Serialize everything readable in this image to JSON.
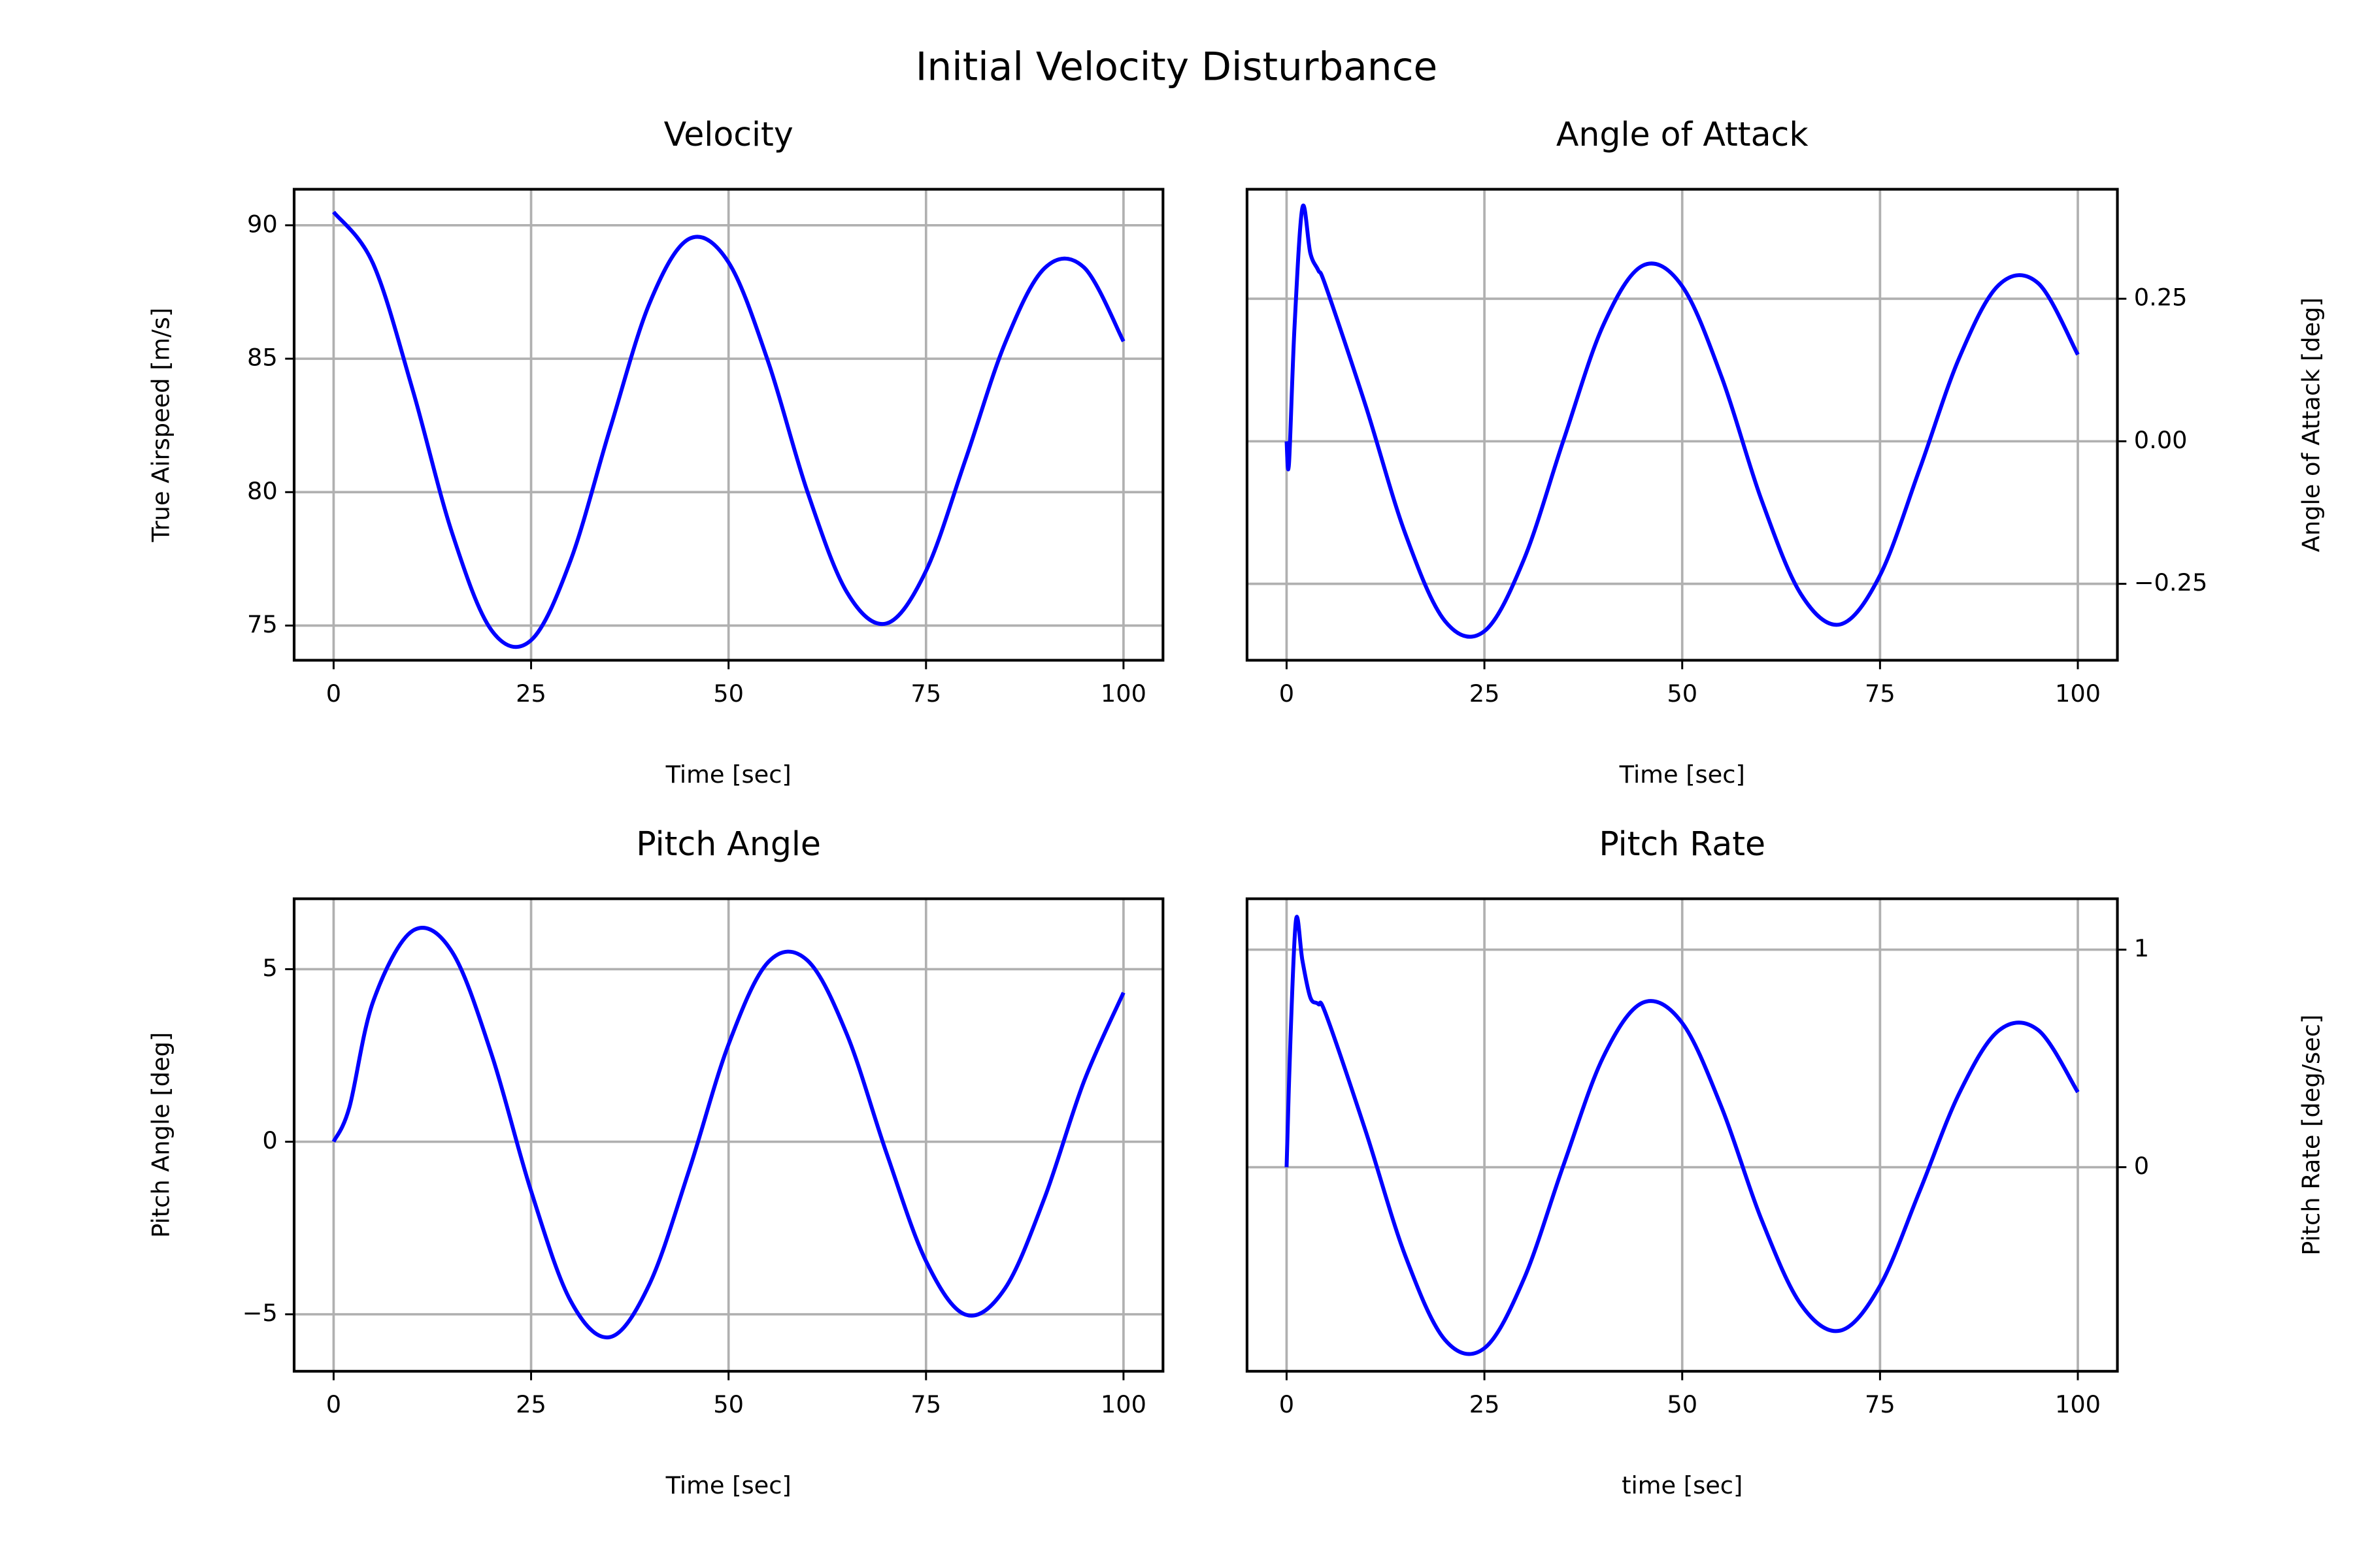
{
  "title": "Initial Velocity Disturbance",
  "chart_data": [
    {
      "type": "line",
      "title": "Velocity",
      "xlabel": "Time [sec]",
      "ylabel": "True Airspeed [m/s]",
      "xlim": [
        -5,
        105
      ],
      "ylim": [
        73.7,
        91.35
      ],
      "xticks": [
        0,
        25,
        50,
        75,
        100
      ],
      "yticks": [
        75,
        80,
        85,
        90
      ],
      "grid": true,
      "yaxis_side": "left",
      "x": [
        0,
        5,
        10,
        15,
        20,
        25,
        30,
        35,
        40,
        45,
        50,
        55,
        60,
        65,
        70,
        75,
        80,
        85,
        90,
        95,
        100
      ],
      "series": [
        {
          "color": "#0000ff",
          "values": [
            90.5,
            88.56,
            83.84,
            78.47,
            74.82,
            74.45,
            77.44,
            82.38,
            87.08,
            89.49,
            88.61,
            84.9,
            80.0,
            76.24,
            75.08,
            77.05,
            81.22,
            85.58,
            88.39,
            88.42,
            85.65
          ]
        }
      ]
    },
    {
      "type": "line",
      "title": "Angle of Attack",
      "xlabel": "Time [sec]",
      "ylabel": "Angle of Attack [deg]",
      "xlim": [
        -5,
        105
      ],
      "ylim": [
        -0.384,
        0.442
      ],
      "xticks": [
        0,
        25,
        50,
        75,
        100
      ],
      "yticks": [
        {
          "value": -0.25,
          "label": "−0.25"
        },
        {
          "value": 0,
          "label": "0.00"
        },
        {
          "value": 0.25,
          "label": "0.25"
        }
      ],
      "grid": true,
      "yaxis_side": "right",
      "x": [
        0,
        0.3,
        1,
        2,
        3,
        4,
        5,
        10,
        15,
        20,
        25,
        30,
        35,
        40,
        45,
        50,
        55,
        60,
        65,
        70,
        75,
        80,
        85,
        90,
        95,
        100
      ],
      "series": [
        {
          "color": "#0000ff",
          "values": [
            0,
            -0.04,
            0.2,
            0.41,
            0.33,
            0.3,
            0.27,
            0.062,
            -0.162,
            -0.315,
            -0.333,
            -0.207,
            0.002,
            0.203,
            0.308,
            0.272,
            0.112,
            -0.102,
            -0.268,
            -0.321,
            -0.235,
            -0.049,
            0.146,
            0.274,
            0.277,
            0.152
          ]
        }
      ]
    },
    {
      "type": "line",
      "title": "Pitch Angle",
      "xlabel": "Time [sec]",
      "ylabel": "Pitch Angle [deg]",
      "xlim": [
        -5,
        105
      ],
      "ylim": [
        -6.65,
        7.04
      ],
      "xticks": [
        0,
        25,
        50,
        75,
        100
      ],
      "yticks": [
        {
          "value": -5,
          "label": "−5"
        },
        0,
        5
      ],
      "grid": true,
      "yaxis_side": "left",
      "x": [
        0,
        2,
        5,
        10,
        15,
        20,
        25,
        30,
        35,
        40,
        45,
        50,
        55,
        60,
        65,
        70,
        75,
        80,
        85,
        90,
        95,
        100
      ],
      "series": [
        {
          "color": "#0000ff",
          "values": [
            0,
            1.0,
            4.06,
            6.11,
            5.5,
            2.53,
            -1.43,
            -4.61,
            -5.66,
            -4.12,
            -0.83,
            2.82,
            5.2,
            5.25,
            3.1,
            -0.33,
            -3.46,
            -5.01,
            -4.25,
            -1.63,
            1.75,
            4.32
          ]
        }
      ]
    },
    {
      "type": "line",
      "title": "Pitch Rate",
      "xlabel": "time [sec]",
      "ylabel": "Pitch Rate [deg/sec]",
      "xlim": [
        -5,
        105
      ],
      "ylim": [
        -0.938,
        1.234
      ],
      "xticks": [
        0,
        25,
        50,
        75,
        100
      ],
      "yticks": [
        0,
        1
      ],
      "grid": true,
      "yaxis_side": "right",
      "x": [
        0,
        0.5,
        1.2,
        2,
        3,
        4,
        5,
        10,
        15,
        20,
        25,
        30,
        35,
        40,
        45,
        50,
        55,
        60,
        65,
        70,
        75,
        80,
        85,
        90,
        95,
        100
      ],
      "series": [
        {
          "color": "#0000ff",
          "values": [
            0,
            0.6,
            1.14,
            0.95,
            0.78,
            0.75,
            0.7,
            0.165,
            -0.407,
            -0.793,
            -0.832,
            -0.513,
            0.01,
            0.505,
            0.756,
            0.663,
            0.273,
            -0.239,
            -0.631,
            -0.751,
            -0.545,
            -0.111,
            0.339,
            0.628,
            0.63,
            0.345
          ]
        }
      ]
    }
  ]
}
